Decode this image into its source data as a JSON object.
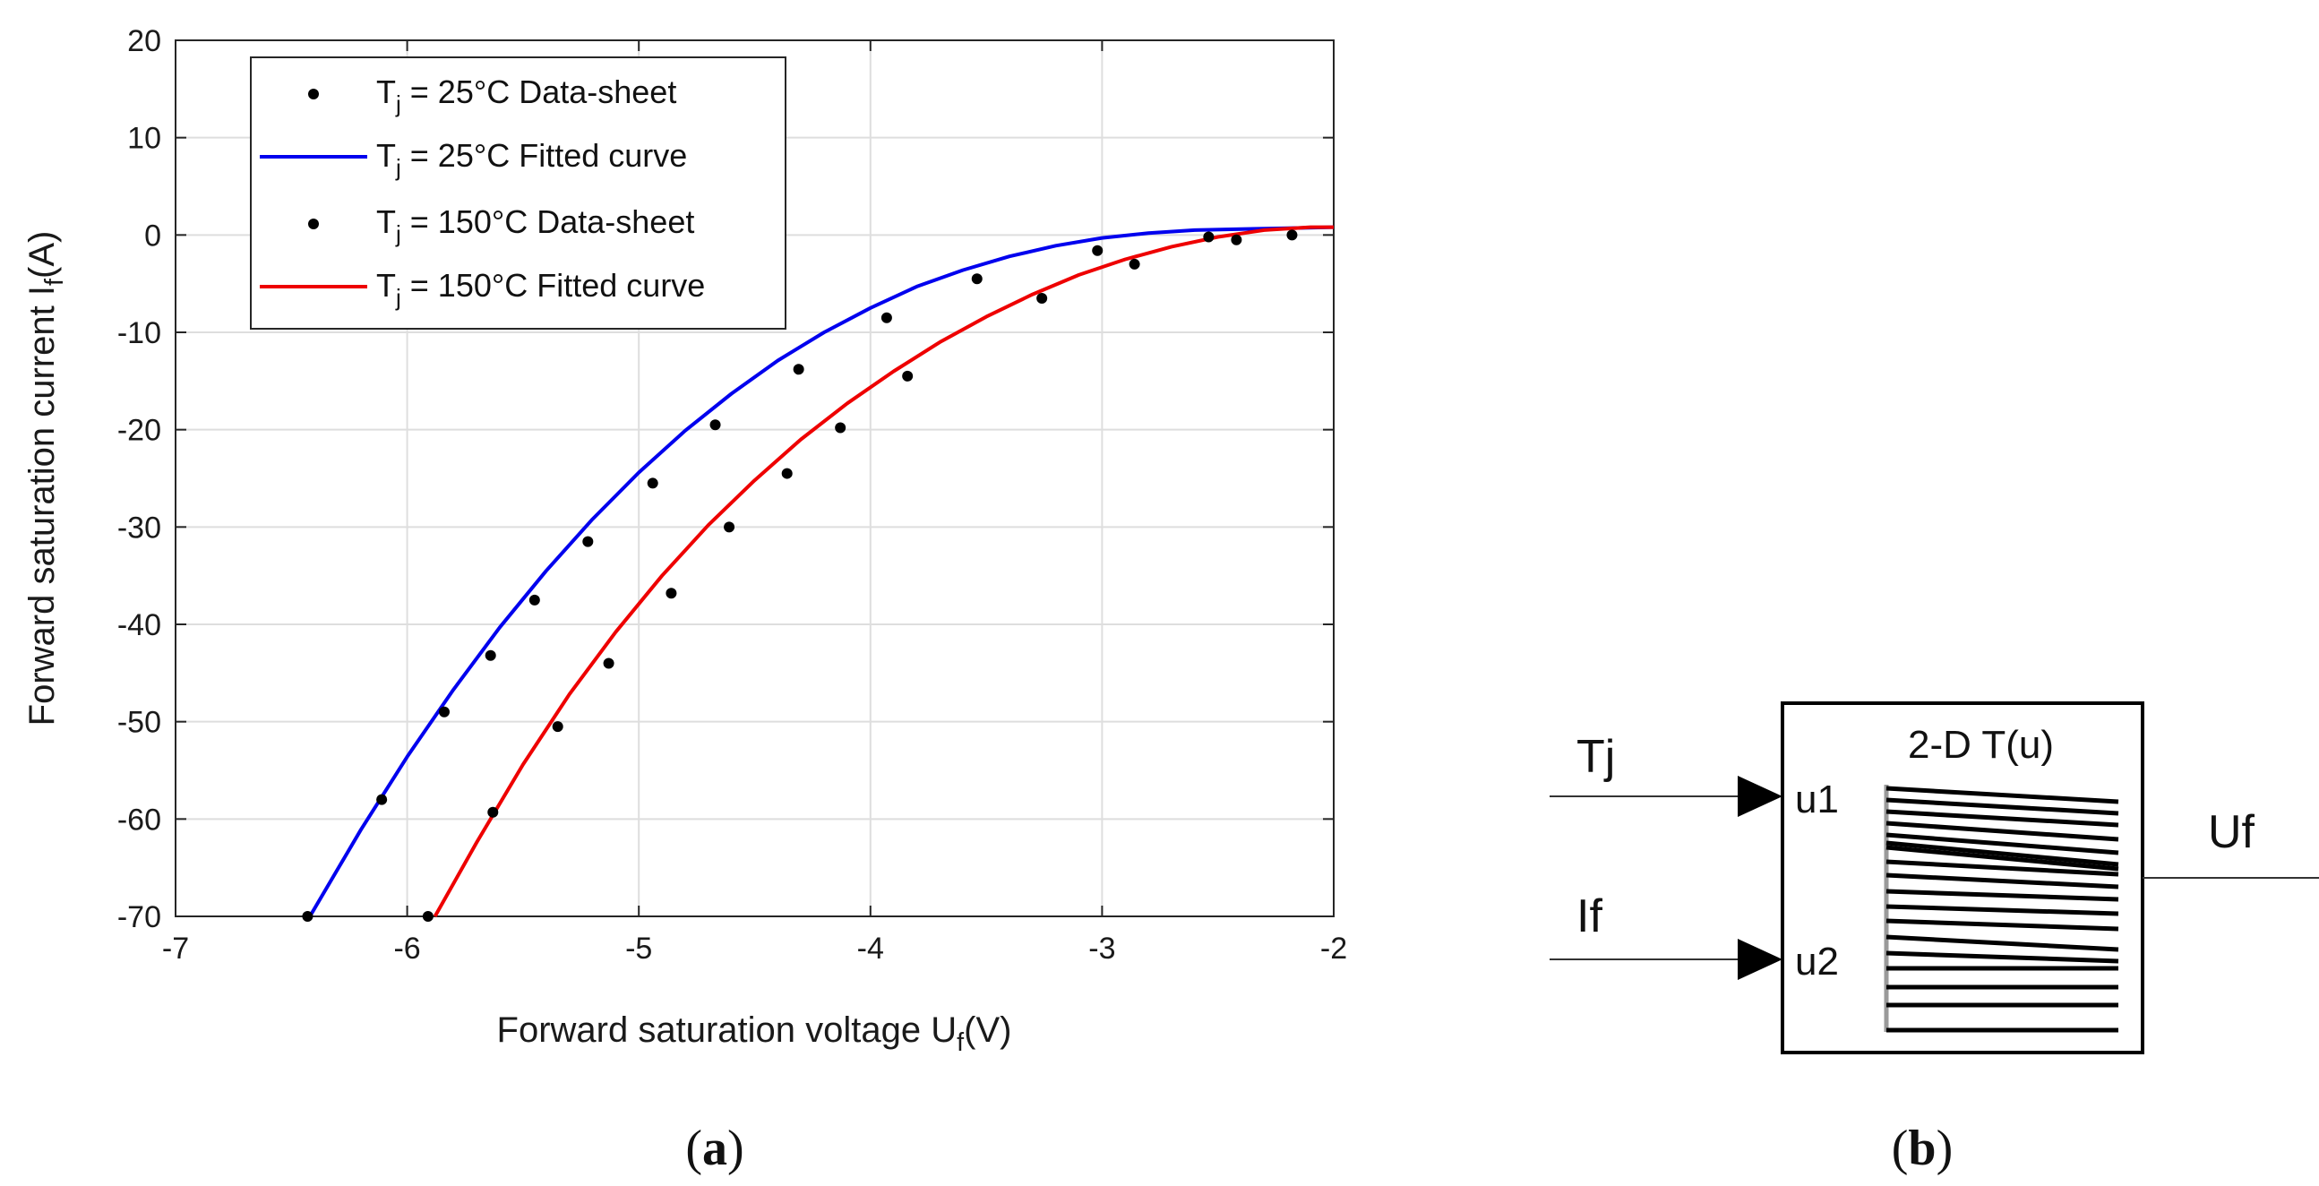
{
  "chart_data": {
    "type": "scatter",
    "title": "",
    "xlabel": "Forward saturation voltage U",
    "xlabel_sub": "f",
    "xlabel_unit": "(V)",
    "ylabel": "Forward saturation current I",
    "ylabel_sub": "f",
    "ylabel_unit": "(A)",
    "xlim": [
      -7,
      -2
    ],
    "ylim": [
      -70,
      20
    ],
    "xticks": [
      -7,
      -6,
      -5,
      -4,
      -3,
      -2
    ],
    "yticks": [
      -70,
      -60,
      -50,
      -40,
      -30,
      -20,
      -10,
      0,
      10,
      20
    ],
    "grid": true,
    "legend_position": "top-left",
    "series": [
      {
        "name": "T_j = 25°C Data-sheet",
        "kind": "markers",
        "color": "#000000",
        "x": [
          -6.43,
          -6.11,
          -5.84,
          -5.64,
          -5.45,
          -5.22,
          -4.94,
          -4.67,
          -4.31,
          -3.93,
          -3.54,
          -3.02,
          -2.54,
          -2.18
        ],
        "y": [
          -70.0,
          -58.0,
          -49.0,
          -43.2,
          -37.5,
          -31.5,
          -25.5,
          -19.5,
          -13.8,
          -8.5,
          -4.5,
          -1.6,
          -0.2,
          0.0
        ]
      },
      {
        "name": "T_j = 25°C Fitted curve",
        "kind": "line",
        "color": "#0000ee",
        "x": [
          -6.42,
          -6.2,
          -6.0,
          -5.8,
          -5.6,
          -5.4,
          -5.2,
          -5.0,
          -4.8,
          -4.6,
          -4.4,
          -4.2,
          -4.0,
          -3.8,
          -3.6,
          -3.4,
          -3.2,
          -3.0,
          -2.8,
          -2.6,
          -2.4,
          -2.2,
          -2.0
        ],
        "y": [
          -70.0,
          -61.1,
          -53.6,
          -46.7,
          -40.3,
          -34.5,
          -29.2,
          -24.4,
          -20.1,
          -16.3,
          -12.9,
          -10.0,
          -7.5,
          -5.3,
          -3.6,
          -2.2,
          -1.1,
          -0.3,
          0.2,
          0.5,
          0.6,
          0.7,
          0.8
        ]
      },
      {
        "name": "T_j = 150°C Data-sheet",
        "kind": "markers",
        "color": "#000000",
        "x": [
          -5.91,
          -5.63,
          -5.35,
          -5.13,
          -4.86,
          -4.61,
          -4.36,
          -4.13,
          -3.84,
          -3.26,
          -2.86,
          -2.42
        ],
        "y": [
          -70.0,
          -59.3,
          -50.5,
          -44.0,
          -36.8,
          -30.0,
          -24.5,
          -19.8,
          -14.5,
          -6.5,
          -3.0,
          -0.5
        ]
      },
      {
        "name": "T_j = 150°C Fitted curve",
        "kind": "line",
        "color": "#ee0000",
        "x": [
          -5.88,
          -5.7,
          -5.5,
          -5.3,
          -5.1,
          -4.9,
          -4.7,
          -4.5,
          -4.3,
          -4.1,
          -3.9,
          -3.7,
          -3.5,
          -3.3,
          -3.1,
          -2.9,
          -2.7,
          -2.5,
          -2.3,
          -2.1,
          -2.0
        ],
        "y": [
          -70.0,
          -62.4,
          -54.4,
          -47.2,
          -40.8,
          -35.0,
          -29.8,
          -25.2,
          -21.0,
          -17.3,
          -14.0,
          -11.0,
          -8.4,
          -6.1,
          -4.1,
          -2.5,
          -1.2,
          -0.2,
          0.5,
          0.8,
          0.8
        ]
      }
    ],
    "legend": [
      {
        "label": "T",
        "sub": "j",
        "rest": " = 25°C Data-sheet"
      },
      {
        "label": "T",
        "sub": "j",
        "rest": " = 25°C Fitted curve"
      },
      {
        "label": "T",
        "sub": "j",
        "rest": " = 150°C Data-sheet"
      },
      {
        "label": "T",
        "sub": "j",
        "rest": " = 150°C Fitted curve"
      }
    ]
  },
  "diagram": {
    "block_title": "2-D T(u)",
    "input1_port": "u1",
    "input2_port": "u2",
    "input1_signal": "Tj",
    "input2_signal": "If",
    "output_signal": "Uf"
  },
  "captions": {
    "a": "a",
    "b": "b"
  }
}
